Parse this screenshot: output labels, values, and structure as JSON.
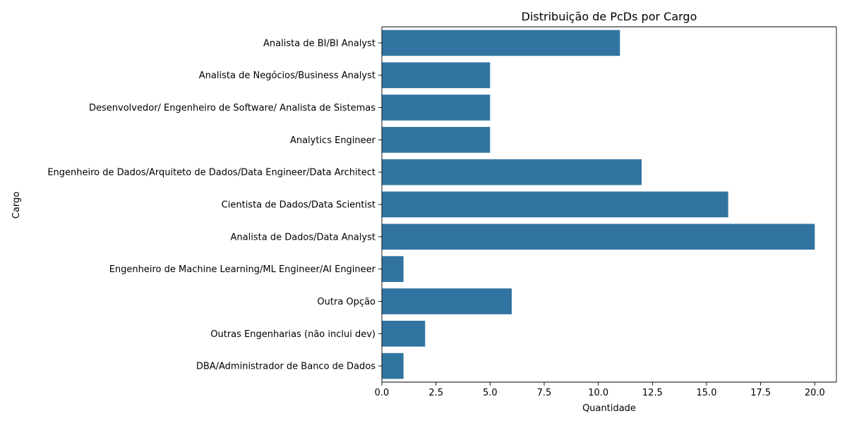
{
  "chart_data": {
    "type": "bar",
    "orientation": "horizontal",
    "title": "Distribuição de PcDs por Cargo",
    "xlabel": "Quantidade",
    "ylabel": "Cargo",
    "xlim": [
      0,
      21
    ],
    "xticks": [
      0,
      2.5,
      5,
      7.5,
      10,
      12.5,
      15,
      17.5,
      20
    ],
    "xtick_labels": [
      "0.0",
      "2.5",
      "5.0",
      "7.5",
      "10.0",
      "12.5",
      "15.0",
      "17.5",
      "20.0"
    ],
    "grid": false,
    "bar_color": "#3274a1",
    "categories": [
      "Analista de BI/BI Analyst",
      "Analista de Negócios/Business Analyst",
      "Desenvolvedor/ Engenheiro de Software/ Analista de Sistemas",
      "Analytics Engineer",
      "Engenheiro de Dados/Arquiteto de Dados/Data Engineer/Data Architect",
      "Cientista de Dados/Data Scientist",
      "Analista de Dados/Data Analyst",
      "Engenheiro de Machine Learning/ML Engineer/AI Engineer",
      "Outra Opção",
      "Outras Engenharias (não inclui dev)",
      "DBA/Administrador de Banco de Dados"
    ],
    "values": [
      11,
      5,
      5,
      5,
      12,
      16,
      20,
      1,
      6,
      2,
      1
    ]
  }
}
